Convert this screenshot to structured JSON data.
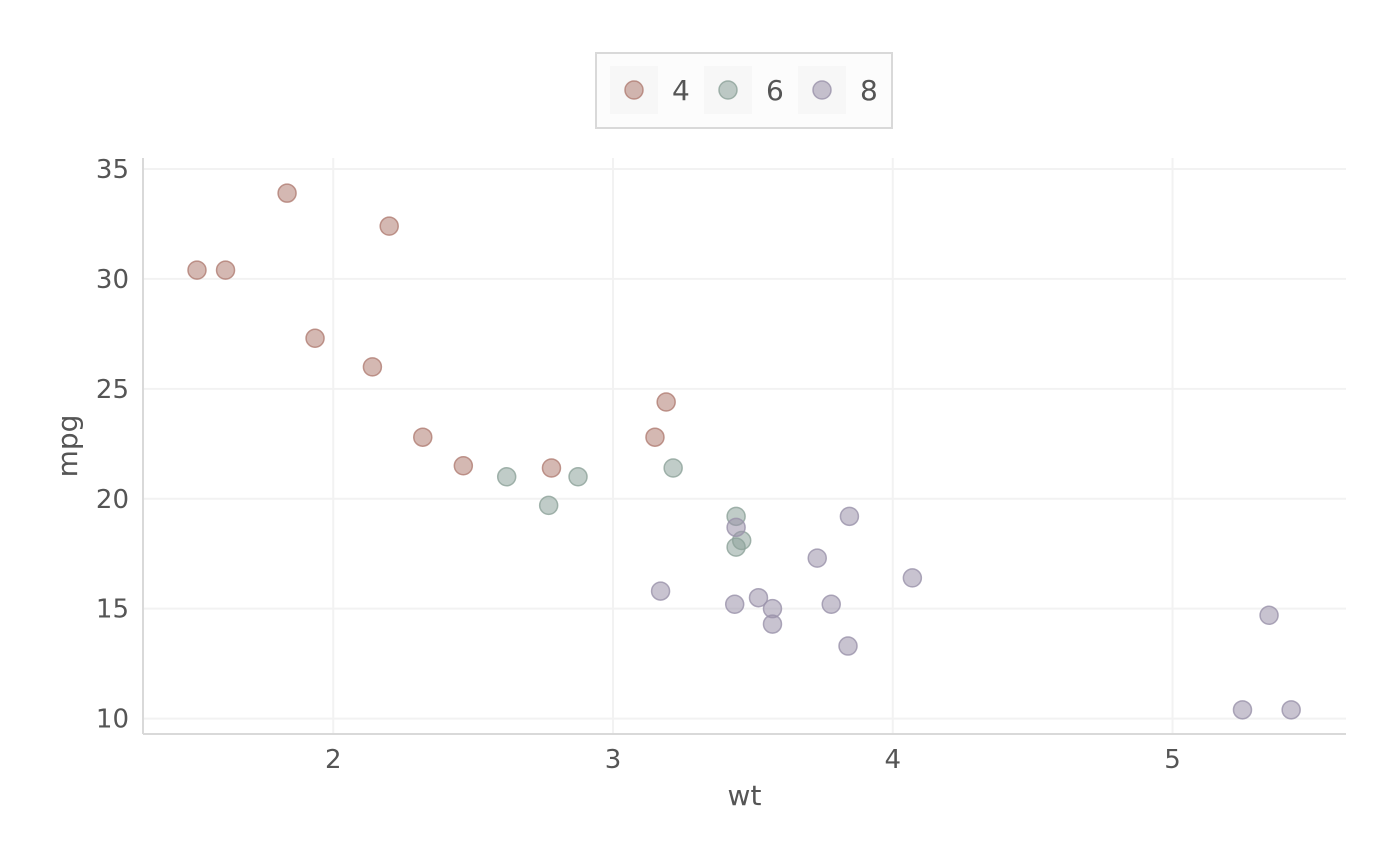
{
  "chart_data": {
    "type": "scatter",
    "title": "",
    "xlabel": "wt",
    "ylabel": "mpg",
    "xlim": [
      1.32,
      5.62
    ],
    "ylim": [
      9.3,
      35.5
    ],
    "xticks": [
      2,
      3,
      4,
      5
    ],
    "yticks": [
      10,
      15,
      20,
      25,
      30,
      35
    ],
    "grid": true,
    "legend_position": "top",
    "legend_title": "",
    "point_alpha": 0.55,
    "series": [
      {
        "name": "4",
        "color": "#b07d73",
        "points": [
          [
            1.513,
            30.4
          ],
          [
            1.615,
            30.4
          ],
          [
            1.835,
            33.9
          ],
          [
            1.935,
            27.3
          ],
          [
            2.14,
            26.0
          ],
          [
            2.2,
            32.4
          ],
          [
            2.32,
            22.8
          ],
          [
            2.465,
            21.5
          ],
          [
            2.78,
            21.4
          ],
          [
            3.15,
            22.8
          ],
          [
            3.19,
            24.4
          ]
        ]
      },
      {
        "name": "6",
        "color": "#8da39a",
        "points": [
          [
            2.62,
            21.0
          ],
          [
            2.77,
            19.7
          ],
          [
            2.875,
            21.0
          ],
          [
            3.215,
            21.4
          ],
          [
            3.44,
            19.2
          ],
          [
            3.44,
            17.8
          ],
          [
            3.46,
            18.1
          ]
        ]
      },
      {
        "name": "8",
        "color": "#9a92aa",
        "points": [
          [
            3.17,
            15.8
          ],
          [
            3.435,
            15.2
          ],
          [
            3.44,
            18.7
          ],
          [
            3.52,
            15.5
          ],
          [
            3.57,
            15.0
          ],
          [
            3.57,
            14.3
          ],
          [
            3.73,
            17.3
          ],
          [
            3.78,
            15.2
          ],
          [
            3.84,
            13.3
          ],
          [
            3.845,
            19.2
          ],
          [
            4.07,
            16.4
          ],
          [
            5.25,
            10.4
          ],
          [
            5.345,
            14.7
          ],
          [
            5.424,
            10.4
          ]
        ]
      }
    ]
  }
}
